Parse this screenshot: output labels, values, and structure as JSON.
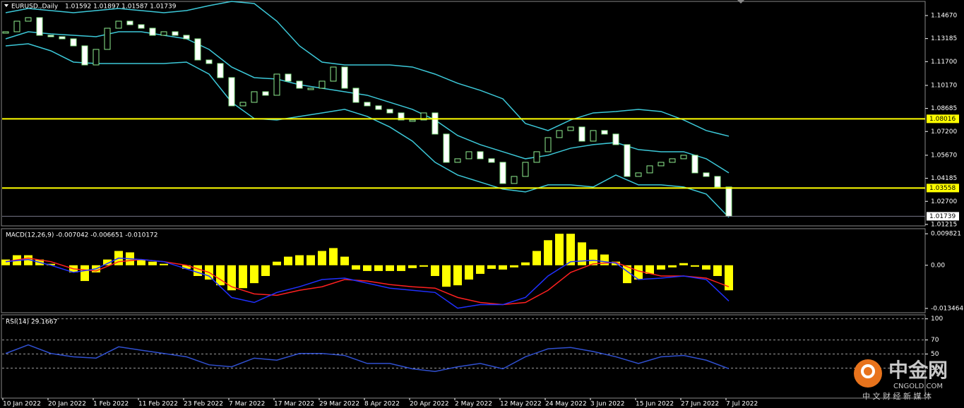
{
  "header": {
    "symbol": "EURUSD.,Daily",
    "ohlc": "1.01592 1.01897 1.01587 1.01739"
  },
  "chart_data": [
    {
      "type": "candlestick",
      "categories": [
        "10 Jan 2022",
        "20 Jan 2022",
        "1 Feb 2022",
        "11 Feb 2022",
        "23 Feb 2022",
        "7 Mar 2022",
        "17 Mar 2022",
        "29 Mar 2022",
        "8 Apr 2022",
        "20 Apr 2022",
        "2 May 2022",
        "12 May 2022",
        "24 May 2022",
        "3 Jun 2022",
        "15 Jun 2022",
        "27 Jun 2022",
        "7 Jul 2022"
      ],
      "closes": [
        1.13625,
        1.14306,
        1.14534,
        1.13397,
        1.13306,
        1.1317,
        1.12715,
        1.11488,
        1.12488,
        1.13852,
        1.14306,
        1.14079,
        1.13852,
        1.13397,
        1.13625,
        1.13397,
        1.1317,
        1.11806,
        1.11579,
        1.1067,
        1.08852,
        1.09079,
        1.09761,
        1.09534,
        1.10897,
        1.10443,
        1.09988,
        1.09988,
        1.10443,
        1.11352,
        1.09988,
        1.09079,
        1.08852,
        1.08625,
        1.08397,
        1.07943,
        1.07943,
        1.08397,
        1.07034,
        1.05215,
        1.05443,
        1.05897,
        1.05443,
        1.05215,
        1.03852,
        1.04306,
        1.05215,
        1.05897,
        1.06806,
        1.07261,
        1.07488,
        1.06579,
        1.07261,
        1.07034,
        1.06352,
        1.04306,
        1.04534,
        1.04988,
        1.05215,
        1.05443,
        1.0567,
        1.04534,
        1.04306,
        1.03625,
        1.01739
      ],
      "color": "#90ee90",
      "bands": {
        "color": "#3cc8d8",
        "upper": [
          1.14852,
          1.15125,
          1.14988,
          1.14852,
          1.14988,
          1.15125,
          1.14988,
          1.14852,
          1.14988,
          1.15306,
          1.15579,
          1.15443,
          1.14306,
          1.12715,
          1.1167,
          1.11488,
          1.11488,
          1.11488,
          1.11352,
          1.10897,
          1.10306,
          1.09852,
          1.09306,
          1.07715,
          1.07261,
          1.07943,
          1.08397,
          1.08488,
          1.08625,
          1.08488,
          1.07943,
          1.07261,
          1.06897
        ],
        "middle": [
          1.1317,
          1.13625,
          1.13488,
          1.13397,
          1.13306,
          1.13625,
          1.13625,
          1.13397,
          1.1317,
          1.12488,
          1.11352,
          1.1067,
          1.10579,
          1.10215,
          1.09988,
          1.09761,
          1.09534,
          1.09079,
          1.08625,
          1.07943,
          1.06943,
          1.06352,
          1.05897,
          1.05443,
          1.0567,
          1.06125,
          1.06352,
          1.06488,
          1.06034,
          1.05897,
          1.05897,
          1.05443,
          1.04534
        ],
        "lower": [
          1.12715,
          1.12852,
          1.12397,
          1.1167,
          1.11579,
          1.11579,
          1.11579,
          1.11579,
          1.1167,
          1.10897,
          1.09079,
          1.08034,
          1.07943,
          1.0817,
          1.08397,
          1.08625,
          1.0817,
          1.07488,
          1.06579,
          1.05215,
          1.04397,
          1.03943,
          1.03488,
          1.03306,
          1.03761,
          1.03761,
          1.03625,
          1.04397,
          1.03761,
          1.03761,
          1.03625,
          1.0317,
          1.0167
        ]
      },
      "levels": [
        1.08016,
        1.03558
      ],
      "level_color": "#ffff00",
      "last_price": 1.01739,
      "ylim": [
        1.0112,
        1.1567
      ],
      "yticks": [
        {
          "value": 1.1467,
          "label": "1.14670"
        },
        1.13185,
        {
          "value": 1.117,
          "label": "1.11700"
        },
        {
          "value": 1.1017,
          "label": "1.10170"
        },
        1.08685,
        {
          "value": 1.072,
          "label": "1.07200"
        },
        {
          "value": 1.0567,
          "label": "1.05670"
        },
        1.04185,
        {
          "value": 1.027,
          "label": "1.02700"
        },
        1.01215
      ]
    },
    {
      "type": "macd",
      "label": "MACD(12,26,9) -0.007042 -0.006651 -0.010172",
      "histogram": {
        "color": "#ffff00",
        "values": [
          0.00179,
          0.00313,
          0.00313,
          0.00179,
          0.00045,
          0,
          -0.00223,
          -0.00491,
          -0.00223,
          0.00179,
          0.00446,
          0.00402,
          0.00179,
          0.00112,
          0.00045,
          0,
          -0.00112,
          -0.00335,
          -0.00446,
          -0.00625,
          -0.00781,
          -0.00714,
          -0.00558,
          -0.00335,
          0.00112,
          0.00268,
          0.00313,
          0.00313,
          0.00446,
          0.00536,
          0.00268,
          -0.00134,
          -0.00179,
          -0.00179,
          -0.00179,
          -0.00179,
          -0.00089,
          -0.00045,
          -0.00335,
          -0.0067,
          -0.00625,
          -0.00446,
          -0.00268,
          -0.00112,
          -0.00134,
          -0.00067,
          0.00089,
          0.00446,
          0.00781,
          0.00982,
          0.00982,
          0.00714,
          0.00491,
          0.00335,
          0.00112,
          -0.00558,
          -0.00446,
          -0.00268,
          -0.00134,
          -0.00067,
          0.00067,
          -0.00045,
          -0.00134,
          -0.00335,
          -0.00781
        ]
      },
      "series": [
        {
          "color": "#ff2020",
          "values": [
            0.00112,
            0.00223,
            0.00112,
            -0.00112,
            -0.00179,
            0.00112,
            0.00179,
            0.00112,
            0,
            -0.00223,
            -0.0067,
            -0.00893,
            -0.00937,
            -0.00781,
            -0.0067,
            -0.00446,
            -0.00491,
            -0.00603,
            -0.0067,
            -0.00714,
            -0.01004,
            -0.01161,
            -0.01228,
            -0.01161,
            -0.00781,
            -0.00223,
            0.00045,
            0.00089,
            -0.00179,
            -0.00335,
            -0.00335,
            -0.00402,
            -0.0067
          ]
        },
        {
          "color": "#2030ff",
          "values": [
            0.00112,
            0.00179,
            0,
            -0.00223,
            -0.00112,
            0.00223,
            0.00179,
            0.00112,
            -0.00112,
            -0.00335,
            -0.01004,
            -0.01161,
            -0.00848,
            -0.0067,
            -0.00446,
            -0.00402,
            -0.00558,
            -0.00714,
            -0.00781,
            -0.00848,
            -0.01339,
            -0.01228,
            -0.01228,
            -0.01004,
            -0.00335,
            0.00112,
            0.00156,
            0.00067,
            -0.00446,
            -0.00402,
            -0.00335,
            -0.00446,
            -0.01116
          ]
        }
      ],
      "ylim": [
        -0.0148,
        0.0114
      ],
      "yticks": [
        0.009821,
        {
          "value": 0,
          "label": "0.00"
        },
        -0.013464
      ]
    },
    {
      "type": "rsi",
      "label": "RSI(14) 29.1667",
      "color": "#3050d0",
      "values": [
        50.8,
        63.1,
        50.8,
        46.1,
        44.2,
        60.3,
        55.5,
        50.8,
        46.1,
        34.7,
        31.9,
        44.2,
        41.3,
        50.8,
        50.8,
        48.0,
        36.6,
        36.6,
        29.0,
        25.3,
        31.9,
        36.6,
        29.0,
        46.1,
        57.4,
        59.3,
        53.6,
        46.1,
        36.6,
        46.1,
        48.0,
        41.3,
        29.2
      ],
      "ylim": [
        -12.6,
        105.7
      ],
      "yticks": [
        100,
        70,
        50,
        30
      ],
      "grid": true
    }
  ],
  "watermark": {
    "name": "中金网",
    "site": "CNGOLD.COM",
    "slogan": "中 文 财 经 新 媒 体"
  }
}
